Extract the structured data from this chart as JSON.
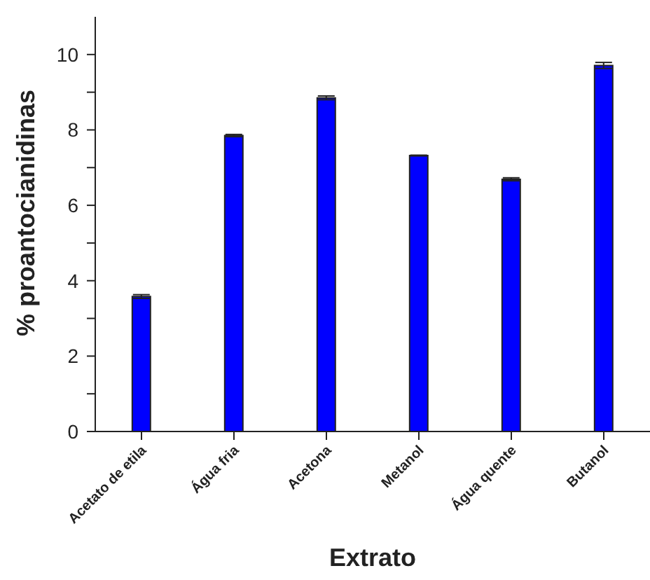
{
  "chart_data": {
    "type": "bar",
    "xlabel": "Extrato",
    "ylabel": "% proantocianidinas",
    "categories": [
      "Acetato de etila",
      "Água fria",
      "Acetona",
      "Metanol",
      "Água quente",
      "Butanol"
    ],
    "values": [
      3.58,
      7.85,
      8.85,
      7.32,
      6.69,
      9.71
    ],
    "errors": [
      0.05,
      0.03,
      0.05,
      0.01,
      0.04,
      0.08
    ],
    "color": "#0000ff",
    "ylim": [
      0,
      11
    ],
    "yticks": [
      0,
      {
        "value": 1,
        "label": null
      },
      2,
      {
        "value": 3,
        "label": null
      },
      4,
      {
        "value": 5,
        "label": null
      },
      6,
      {
        "value": 7,
        "label": null
      },
      8,
      {
        "value": 9,
        "label": null
      },
      10
    ],
    "grid": false,
    "legend": false
  }
}
